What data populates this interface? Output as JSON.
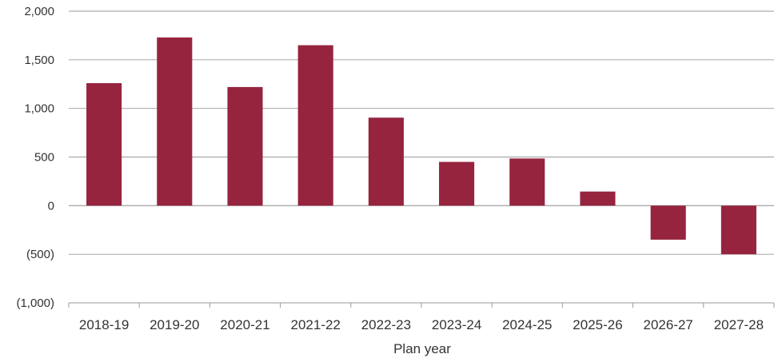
{
  "chart_data": {
    "type": "bar",
    "title": "",
    "xlabel": "Plan year",
    "ylabel": "",
    "categories": [
      "2018-19",
      "2019-20",
      "2020-21",
      "2021-22",
      "2022-23",
      "2023-24",
      "2024-25",
      "2025-26",
      "2026-27",
      "2027-28"
    ],
    "values": [
      1260,
      1730,
      1220,
      1650,
      905,
      450,
      485,
      145,
      -350,
      -500
    ],
    "ylim": [
      -1000,
      2000
    ],
    "yticks": [
      2000,
      1500,
      1000,
      500,
      0,
      -500,
      -1000
    ],
    "ytick_labels": [
      "2,000",
      "1,500",
      "1,000",
      "500",
      "0",
      "(500)",
      "(1,000)"
    ],
    "grid": true,
    "legend": "none",
    "bar_color": "#96243f",
    "grid_color": "#9a9a9a",
    "axis_color": "#9a9a9a"
  }
}
